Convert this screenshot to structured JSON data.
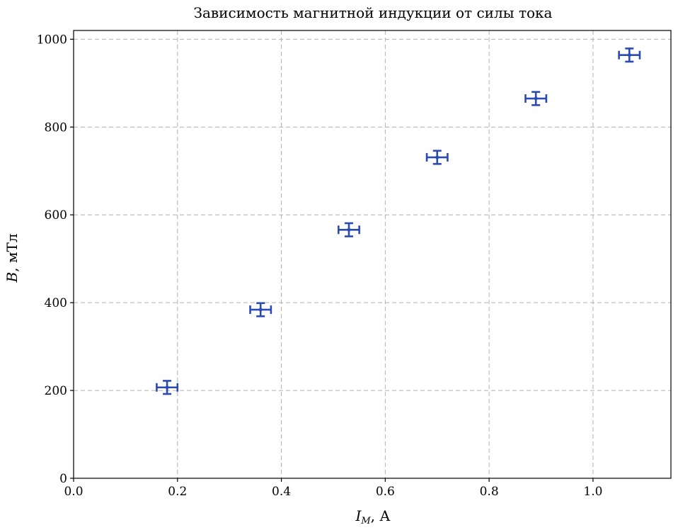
{
  "chart_data": {
    "type": "scatter",
    "title": "Зависимость магнитной индукции от силы тока",
    "xlabel": {
      "main": "I",
      "sub": "M",
      "rest": ", А"
    },
    "ylabel": {
      "main": "B",
      "rest": ", мТл"
    },
    "xlim": [
      0.0,
      1.15
    ],
    "ylim": [
      0,
      1020
    ],
    "xticks": [
      0.0,
      0.2,
      0.4,
      0.6,
      0.8,
      1.0
    ],
    "xtick_labels": [
      "0.0",
      "0.2",
      "0.4",
      "0.6",
      "0.8",
      "1.0"
    ],
    "yticks": [
      0,
      200,
      400,
      600,
      800,
      1000
    ],
    "ytick_labels": [
      "0",
      "200",
      "400",
      "600",
      "800",
      "1000"
    ],
    "grid": true,
    "marker_color": "#2b4bb2",
    "points": [
      {
        "x": 0.18,
        "y": 207,
        "xerr": 0.02,
        "yerr": 15
      },
      {
        "x": 0.36,
        "y": 384,
        "xerr": 0.02,
        "yerr": 15
      },
      {
        "x": 0.53,
        "y": 566,
        "xerr": 0.02,
        "yerr": 15
      },
      {
        "x": 0.7,
        "y": 731,
        "xerr": 0.02,
        "yerr": 15
      },
      {
        "x": 0.89,
        "y": 865,
        "xerr": 0.02,
        "yerr": 15
      },
      {
        "x": 1.07,
        "y": 964,
        "xerr": 0.02,
        "yerr": 15
      }
    ]
  }
}
